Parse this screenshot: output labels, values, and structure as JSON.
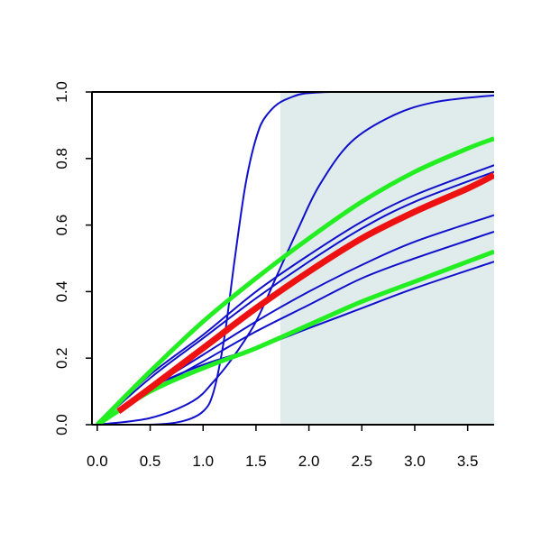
{
  "chart_data": {
    "type": "line",
    "title": "",
    "xlabel": "",
    "ylabel": "",
    "xlim": [
      -0.05,
      3.75
    ],
    "ylim": [
      0,
      1
    ],
    "x_ticks": [
      "0.0",
      "0.5",
      "1.0",
      "1.5",
      "2.0",
      "2.5",
      "3.0",
      "3.5"
    ],
    "y_ticks": [
      "0.0",
      "0.2",
      "0.4",
      "0.6",
      "0.8",
      "1.0"
    ],
    "grid": false,
    "shaded_region": {
      "x_start": 1.73,
      "x_end": 3.75,
      "color": "#e0ecec"
    },
    "series": [
      {
        "color": "#1010cc",
        "width": 2,
        "points": [
          [
            0,
            0
          ],
          [
            0.5,
            0.0
          ],
          [
            0.8,
            0.01
          ],
          [
            1.0,
            0.04
          ],
          [
            1.1,
            0.1
          ],
          [
            1.2,
            0.26
          ],
          [
            1.3,
            0.5
          ],
          [
            1.4,
            0.72
          ],
          [
            1.5,
            0.86
          ],
          [
            1.6,
            0.93
          ],
          [
            1.8,
            0.98
          ],
          [
            2.2,
            1.0
          ],
          [
            3.75,
            1.0
          ]
        ]
      },
      {
        "color": "#1010cc",
        "width": 2,
        "points": [
          [
            0,
            0
          ],
          [
            0.5,
            0.02
          ],
          [
            0.9,
            0.07
          ],
          [
            1.1,
            0.13
          ],
          [
            1.3,
            0.21
          ],
          [
            1.5,
            0.31
          ],
          [
            1.7,
            0.45
          ],
          [
            1.9,
            0.59
          ],
          [
            2.1,
            0.72
          ],
          [
            2.4,
            0.85
          ],
          [
            2.8,
            0.93
          ],
          [
            3.2,
            0.97
          ],
          [
            3.75,
            0.99
          ]
        ]
      },
      {
        "color": "#1010cc",
        "width": 2,
        "points": [
          [
            0,
            0
          ],
          [
            0.5,
            0.15
          ],
          [
            1.0,
            0.27
          ],
          [
            1.5,
            0.4
          ],
          [
            2.0,
            0.51
          ],
          [
            2.5,
            0.61
          ],
          [
            3.0,
            0.69
          ],
          [
            3.75,
            0.78
          ]
        ]
      },
      {
        "color": "#1010cc",
        "width": 2,
        "points": [
          [
            0,
            0
          ],
          [
            0.5,
            0.14
          ],
          [
            1.0,
            0.26
          ],
          [
            1.5,
            0.38
          ],
          [
            2.0,
            0.49
          ],
          [
            2.5,
            0.59
          ],
          [
            3.0,
            0.67
          ],
          [
            3.75,
            0.76
          ]
        ]
      },
      {
        "color": "#1010cc",
        "width": 2,
        "points": [
          [
            0,
            0
          ],
          [
            0.5,
            0.11
          ],
          [
            1.0,
            0.21
          ],
          [
            1.5,
            0.31
          ],
          [
            2.0,
            0.4
          ],
          [
            2.5,
            0.48
          ],
          [
            3.0,
            0.55
          ],
          [
            3.75,
            0.63
          ]
        ]
      },
      {
        "color": "#1010cc",
        "width": 2,
        "points": [
          [
            0,
            0
          ],
          [
            0.5,
            0.1
          ],
          [
            1.0,
            0.19
          ],
          [
            1.5,
            0.28
          ],
          [
            2.0,
            0.36
          ],
          [
            2.5,
            0.44
          ],
          [
            3.0,
            0.5
          ],
          [
            3.75,
            0.58
          ]
        ]
      },
      {
        "color": "#1010cc",
        "width": 2,
        "points": [
          [
            0,
            0
          ],
          [
            0.5,
            0.11
          ],
          [
            1.0,
            0.18
          ],
          [
            1.5,
            0.23
          ],
          [
            2.0,
            0.29
          ],
          [
            2.5,
            0.35
          ],
          [
            3.0,
            0.41
          ],
          [
            3.75,
            0.49
          ]
        ]
      },
      {
        "color": "#22ee22",
        "width": 5,
        "points": [
          [
            0,
            0
          ],
          [
            0.5,
            0.16
          ],
          [
            1.0,
            0.31
          ],
          [
            1.5,
            0.44
          ],
          [
            2.0,
            0.56
          ],
          [
            2.5,
            0.67
          ],
          [
            3.0,
            0.76
          ],
          [
            3.5,
            0.83
          ],
          [
            3.75,
            0.86
          ]
        ]
      },
      {
        "color": "#22ee22",
        "width": 5,
        "points": [
          [
            0,
            0
          ],
          [
            0.5,
            0.1
          ],
          [
            1.0,
            0.17
          ],
          [
            1.5,
            0.23
          ],
          [
            2.0,
            0.3
          ],
          [
            2.5,
            0.37
          ],
          [
            3.0,
            0.43
          ],
          [
            3.5,
            0.49
          ],
          [
            3.75,
            0.52
          ]
        ]
      },
      {
        "color": "#ee1111",
        "width": 7,
        "points": [
          [
            0.2,
            0.04
          ],
          [
            0.5,
            0.11
          ],
          [
            1.0,
            0.23
          ],
          [
            1.5,
            0.35
          ],
          [
            2.0,
            0.46
          ],
          [
            2.5,
            0.56
          ],
          [
            3.0,
            0.64
          ],
          [
            3.5,
            0.71
          ],
          [
            3.75,
            0.75
          ]
        ]
      }
    ]
  }
}
